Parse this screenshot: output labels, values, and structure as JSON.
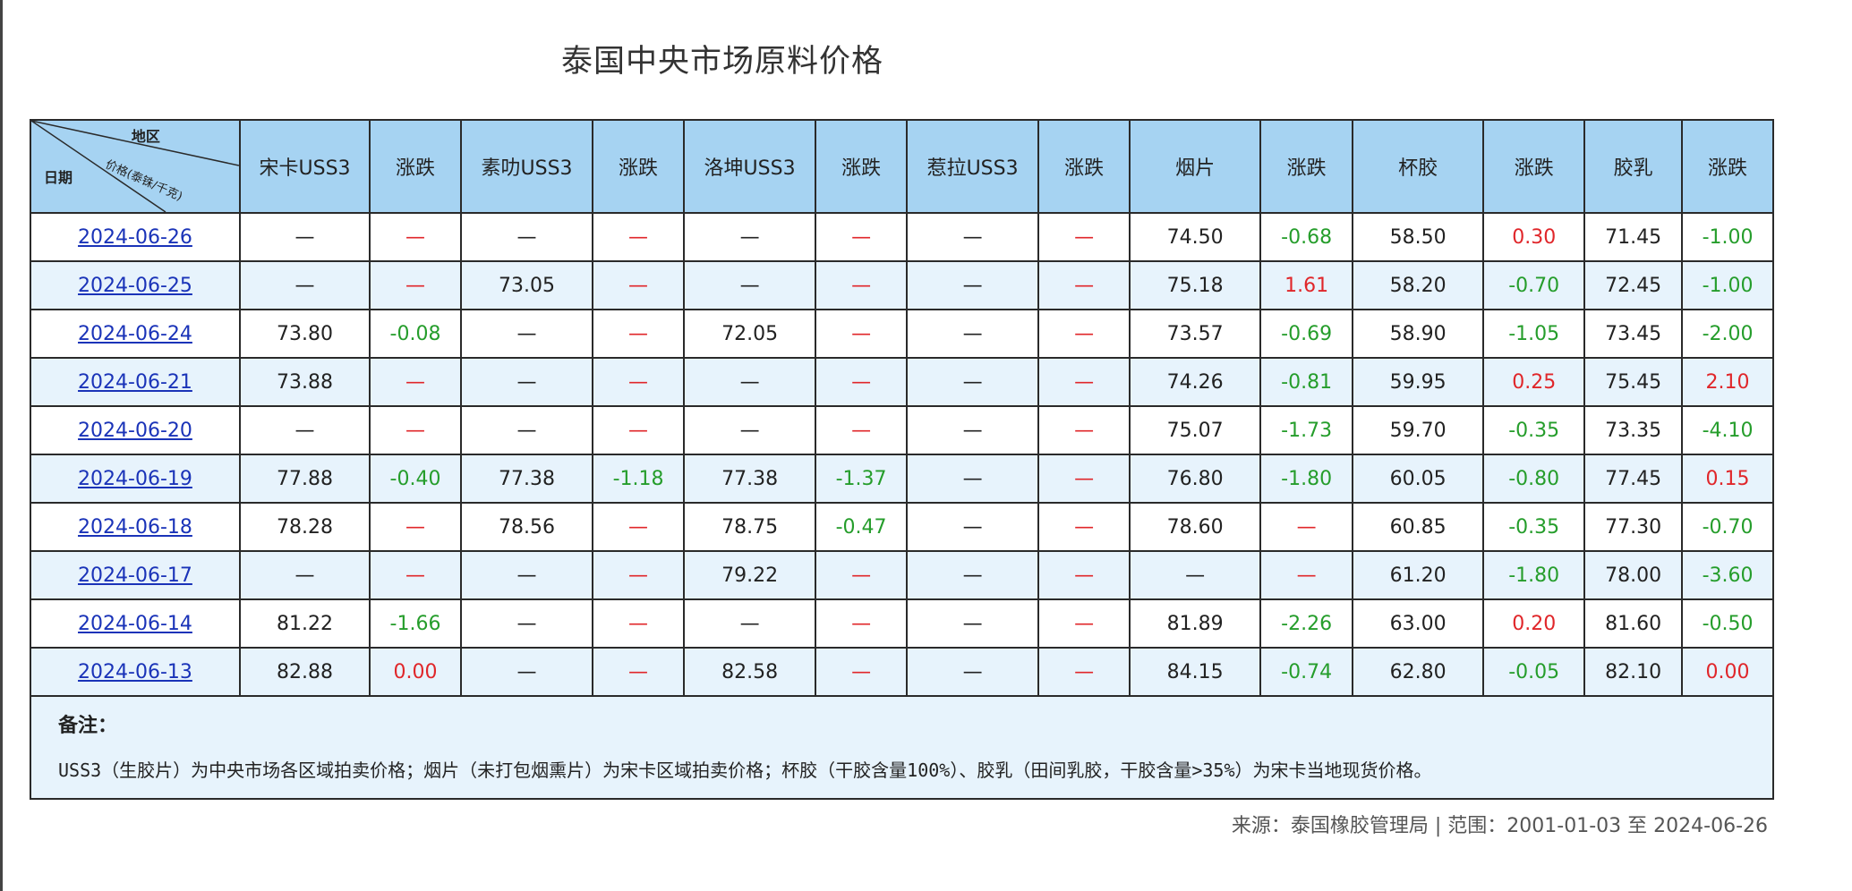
{
  "title": "泰国中央市场原料价格",
  "header": {
    "corner": {
      "region": "地区",
      "price": "价格(泰铢/千克)",
      "date": "日期"
    },
    "columns": [
      "宋卡USS3",
      "涨跌",
      "素叻USS3",
      "涨跌",
      "洛坤USS3",
      "涨跌",
      "惹拉USS3",
      "涨跌",
      "烟片",
      "涨跌",
      "杯胶",
      "涨跌",
      "胶乳",
      "涨跌"
    ]
  },
  "rows": [
    {
      "date": "2024-06-26",
      "cells": [
        {
          "v": "—",
          "t": "dash"
        },
        {
          "v": "—",
          "t": "flat"
        },
        {
          "v": "—",
          "t": "dash"
        },
        {
          "v": "—",
          "t": "flat"
        },
        {
          "v": "—",
          "t": "dash"
        },
        {
          "v": "—",
          "t": "flat"
        },
        {
          "v": "—",
          "t": "dash"
        },
        {
          "v": "—",
          "t": "flat"
        },
        {
          "v": "74.50",
          "t": "dash"
        },
        {
          "v": "-0.68",
          "t": "down"
        },
        {
          "v": "58.50",
          "t": "dash"
        },
        {
          "v": "0.30",
          "t": "up"
        },
        {
          "v": "71.45",
          "t": "dash"
        },
        {
          "v": "-1.00",
          "t": "down"
        }
      ]
    },
    {
      "date": "2024-06-25",
      "cells": [
        {
          "v": "—",
          "t": "dash"
        },
        {
          "v": "—",
          "t": "flat"
        },
        {
          "v": "73.05",
          "t": "dash"
        },
        {
          "v": "—",
          "t": "flat"
        },
        {
          "v": "—",
          "t": "dash"
        },
        {
          "v": "—",
          "t": "flat"
        },
        {
          "v": "—",
          "t": "dash"
        },
        {
          "v": "—",
          "t": "flat"
        },
        {
          "v": "75.18",
          "t": "dash"
        },
        {
          "v": "1.61",
          "t": "up"
        },
        {
          "v": "58.20",
          "t": "dash"
        },
        {
          "v": "-0.70",
          "t": "down"
        },
        {
          "v": "72.45",
          "t": "dash"
        },
        {
          "v": "-1.00",
          "t": "down"
        }
      ]
    },
    {
      "date": "2024-06-24",
      "cells": [
        {
          "v": "73.80",
          "t": "dash"
        },
        {
          "v": "-0.08",
          "t": "down"
        },
        {
          "v": "—",
          "t": "dash"
        },
        {
          "v": "—",
          "t": "flat"
        },
        {
          "v": "72.05",
          "t": "dash"
        },
        {
          "v": "—",
          "t": "flat"
        },
        {
          "v": "—",
          "t": "dash"
        },
        {
          "v": "—",
          "t": "flat"
        },
        {
          "v": "73.57",
          "t": "dash"
        },
        {
          "v": "-0.69",
          "t": "down"
        },
        {
          "v": "58.90",
          "t": "dash"
        },
        {
          "v": "-1.05",
          "t": "down"
        },
        {
          "v": "73.45",
          "t": "dash"
        },
        {
          "v": "-2.00",
          "t": "down"
        }
      ]
    },
    {
      "date": "2024-06-21",
      "cells": [
        {
          "v": "73.88",
          "t": "dash"
        },
        {
          "v": "—",
          "t": "flat"
        },
        {
          "v": "—",
          "t": "dash"
        },
        {
          "v": "—",
          "t": "flat"
        },
        {
          "v": "—",
          "t": "dash"
        },
        {
          "v": "—",
          "t": "flat"
        },
        {
          "v": "—",
          "t": "dash"
        },
        {
          "v": "—",
          "t": "flat"
        },
        {
          "v": "74.26",
          "t": "dash"
        },
        {
          "v": "-0.81",
          "t": "down"
        },
        {
          "v": "59.95",
          "t": "dash"
        },
        {
          "v": "0.25",
          "t": "up"
        },
        {
          "v": "75.45",
          "t": "dash"
        },
        {
          "v": "2.10",
          "t": "up"
        }
      ]
    },
    {
      "date": "2024-06-20",
      "cells": [
        {
          "v": "—",
          "t": "dash"
        },
        {
          "v": "—",
          "t": "flat"
        },
        {
          "v": "—",
          "t": "dash"
        },
        {
          "v": "—",
          "t": "flat"
        },
        {
          "v": "—",
          "t": "dash"
        },
        {
          "v": "—",
          "t": "flat"
        },
        {
          "v": "—",
          "t": "dash"
        },
        {
          "v": "—",
          "t": "flat"
        },
        {
          "v": "75.07",
          "t": "dash"
        },
        {
          "v": "-1.73",
          "t": "down"
        },
        {
          "v": "59.70",
          "t": "dash"
        },
        {
          "v": "-0.35",
          "t": "down"
        },
        {
          "v": "73.35",
          "t": "dash"
        },
        {
          "v": "-4.10",
          "t": "down"
        }
      ]
    },
    {
      "date": "2024-06-19",
      "cells": [
        {
          "v": "77.88",
          "t": "dash"
        },
        {
          "v": "-0.40",
          "t": "down"
        },
        {
          "v": "77.38",
          "t": "dash"
        },
        {
          "v": "-1.18",
          "t": "down"
        },
        {
          "v": "77.38",
          "t": "dash"
        },
        {
          "v": "-1.37",
          "t": "down"
        },
        {
          "v": "—",
          "t": "dash"
        },
        {
          "v": "—",
          "t": "flat"
        },
        {
          "v": "76.80",
          "t": "dash"
        },
        {
          "v": "-1.80",
          "t": "down"
        },
        {
          "v": "60.05",
          "t": "dash"
        },
        {
          "v": "-0.80",
          "t": "down"
        },
        {
          "v": "77.45",
          "t": "dash"
        },
        {
          "v": "0.15",
          "t": "up"
        }
      ]
    },
    {
      "date": "2024-06-18",
      "cells": [
        {
          "v": "78.28",
          "t": "dash"
        },
        {
          "v": "—",
          "t": "flat"
        },
        {
          "v": "78.56",
          "t": "dash"
        },
        {
          "v": "—",
          "t": "flat"
        },
        {
          "v": "78.75",
          "t": "dash"
        },
        {
          "v": "-0.47",
          "t": "down"
        },
        {
          "v": "—",
          "t": "dash"
        },
        {
          "v": "—",
          "t": "flat"
        },
        {
          "v": "78.60",
          "t": "dash"
        },
        {
          "v": "—",
          "t": "flat"
        },
        {
          "v": "60.85",
          "t": "dash"
        },
        {
          "v": "-0.35",
          "t": "down"
        },
        {
          "v": "77.30",
          "t": "dash"
        },
        {
          "v": "-0.70",
          "t": "down"
        }
      ]
    },
    {
      "date": "2024-06-17",
      "cells": [
        {
          "v": "—",
          "t": "dash"
        },
        {
          "v": "—",
          "t": "flat"
        },
        {
          "v": "—",
          "t": "dash"
        },
        {
          "v": "—",
          "t": "flat"
        },
        {
          "v": "79.22",
          "t": "dash"
        },
        {
          "v": "—",
          "t": "flat"
        },
        {
          "v": "—",
          "t": "dash"
        },
        {
          "v": "—",
          "t": "flat"
        },
        {
          "v": "—",
          "t": "dash"
        },
        {
          "v": "—",
          "t": "flat"
        },
        {
          "v": "61.20",
          "t": "dash"
        },
        {
          "v": "-1.80",
          "t": "down"
        },
        {
          "v": "78.00",
          "t": "dash"
        },
        {
          "v": "-3.60",
          "t": "down"
        }
      ]
    },
    {
      "date": "2024-06-14",
      "cells": [
        {
          "v": "81.22",
          "t": "dash"
        },
        {
          "v": "-1.66",
          "t": "down"
        },
        {
          "v": "—",
          "t": "dash"
        },
        {
          "v": "—",
          "t": "flat"
        },
        {
          "v": "—",
          "t": "dash"
        },
        {
          "v": "—",
          "t": "flat"
        },
        {
          "v": "—",
          "t": "dash"
        },
        {
          "v": "—",
          "t": "flat"
        },
        {
          "v": "81.89",
          "t": "dash"
        },
        {
          "v": "-2.26",
          "t": "down"
        },
        {
          "v": "63.00",
          "t": "dash"
        },
        {
          "v": "0.20",
          "t": "up"
        },
        {
          "v": "81.60",
          "t": "dash"
        },
        {
          "v": "-0.50",
          "t": "down"
        }
      ]
    },
    {
      "date": "2024-06-13",
      "cells": [
        {
          "v": "82.88",
          "t": "dash"
        },
        {
          "v": "0.00",
          "t": "up"
        },
        {
          "v": "—",
          "t": "dash"
        },
        {
          "v": "—",
          "t": "flat"
        },
        {
          "v": "82.58",
          "t": "dash"
        },
        {
          "v": "—",
          "t": "flat"
        },
        {
          "v": "—",
          "t": "dash"
        },
        {
          "v": "—",
          "t": "flat"
        },
        {
          "v": "84.15",
          "t": "dash"
        },
        {
          "v": "-0.74",
          "t": "down"
        },
        {
          "v": "62.80",
          "t": "dash"
        },
        {
          "v": "-0.05",
          "t": "down"
        },
        {
          "v": "82.10",
          "t": "dash"
        },
        {
          "v": "0.00",
          "t": "up"
        }
      ]
    }
  ],
  "note": {
    "title": "备注：",
    "text": "USS3（生胶片）为中央市场各区域拍卖价格；烟片（未打包烟熏片）为宋卡区域拍卖价格；杯胶（干胶含量100%）、胶乳（田间乳胶，干胶含量>35%）为宋卡当地现货价格。"
  },
  "footer": {
    "source": "来源：泰国橡胶管理局 | 范围：2001-01-03 至 2024-06-26"
  },
  "colors": {
    "header_bg": "#a6d3f2",
    "row_alt_bg": "#e7f3fc",
    "up": "#e0262a",
    "down": "#259d2b",
    "link": "#1a33b8"
  }
}
